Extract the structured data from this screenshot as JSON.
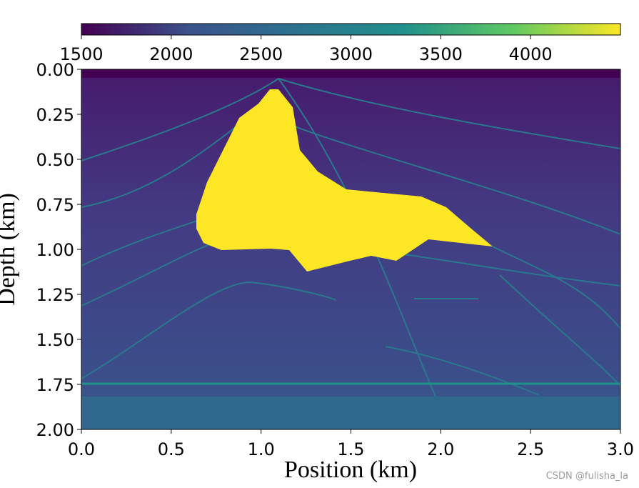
{
  "chart_data": {
    "type": "image",
    "xlabel": "Position (km)",
    "ylabel": "Depth (km)",
    "xlim": [
      0,
      3
    ],
    "ylim": [
      2,
      0
    ],
    "xticks": [
      {
        "value": 0,
        "label": "0.0"
      },
      0.5,
      {
        "value": 1,
        "label": "1.0"
      },
      1.5,
      {
        "value": 2,
        "label": "2.0"
      },
      2.5,
      {
        "value": 3,
        "label": "3.0"
      }
    ],
    "yticks": [
      {
        "value": 0,
        "label": "0.00"
      },
      0.25,
      {
        "value": 0.5,
        "label": "0.50"
      },
      0.75,
      {
        "value": 1,
        "label": "1.00"
      },
      1.25,
      {
        "value": 1.5,
        "label": "1.50"
      },
      1.75,
      {
        "value": 2,
        "label": "2.00"
      }
    ],
    "colorbar": {
      "lim": [
        1500,
        4500
      ],
      "ticks": [
        1500,
        2000,
        2500,
        3000,
        3500,
        4000
      ]
    },
    "watermark": "CSDN @fulisha_la"
  }
}
